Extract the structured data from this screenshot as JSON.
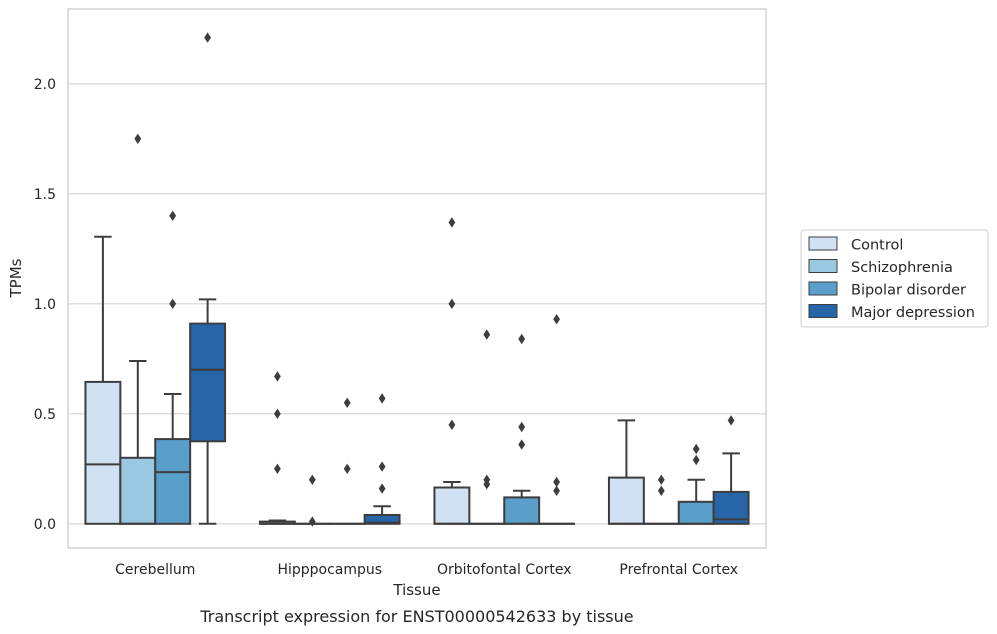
{
  "chart_data": {
    "type": "box",
    "caption": "Transcript expression for ENST00000542633 by tissue",
    "xlabel": "Tissue",
    "ylabel": "TPMs",
    "ylim": [
      -0.11,
      2.34
    ],
    "yticks": [
      0.0,
      0.5,
      1.0,
      1.5,
      2.0
    ],
    "ytick_labels": [
      "0.0",
      "0.5",
      "1.0",
      "1.5",
      "2.0"
    ],
    "grid": "horizontal",
    "legend_position": "right",
    "categories": [
      "Cerebellum",
      "Hipppocampus",
      "Orbitofontal Cortex",
      "Prefrontal Cortex"
    ],
    "series": [
      {
        "name": "Control",
        "color": "#cfe1f2",
        "boxes": [
          {
            "whislo": 0.0,
            "q1": 0.0,
            "med": 0.27,
            "q3": 0.645,
            "whishi": 1.305,
            "fliers": []
          },
          {
            "whislo": 0.0,
            "q1": 0.0,
            "med": 0.0,
            "q3": 0.01,
            "whishi": 0.015,
            "fliers": [
              0.25,
              0.5,
              0.67
            ]
          },
          {
            "whislo": 0.0,
            "q1": 0.0,
            "med": 0.0,
            "q3": 0.165,
            "whishi": 0.19,
            "fliers": [
              0.45,
              1.0,
              1.37
            ]
          },
          {
            "whislo": 0.0,
            "q1": 0.0,
            "med": 0.0,
            "q3": 0.21,
            "whishi": 0.47,
            "fliers": []
          }
        ]
      },
      {
        "name": "Schizophrenia",
        "color": "#9ac8e0",
        "boxes": [
          {
            "whislo": 0.0,
            "q1": 0.0,
            "med": 0.0,
            "q3": 0.3,
            "whishi": 0.74,
            "fliers": [
              1.75
            ]
          },
          {
            "whislo": 0.0,
            "q1": 0.0,
            "med": 0.0,
            "q3": 0.0,
            "whishi": 0.0,
            "fliers": [
              0.01,
              0.2
            ]
          },
          {
            "whislo": 0.0,
            "q1": 0.0,
            "med": 0.0,
            "q3": 0.0,
            "whishi": 0.0,
            "fliers": [
              0.18,
              0.2,
              0.86
            ]
          },
          {
            "whislo": 0.0,
            "q1": 0.0,
            "med": 0.0,
            "q3": 0.0,
            "whishi": 0.0,
            "fliers": [
              0.15,
              0.2
            ]
          }
        ]
      },
      {
        "name": "Bipolar disorder",
        "color": "#5a9fca",
        "boxes": [
          {
            "whislo": 0.0,
            "q1": 0.0,
            "med": 0.235,
            "q3": 0.385,
            "whishi": 0.59,
            "fliers": [
              1.0,
              1.4
            ]
          },
          {
            "whislo": 0.0,
            "q1": 0.0,
            "med": 0.0,
            "q3": 0.0,
            "whishi": 0.0,
            "fliers": [
              0.25,
              0.55
            ]
          },
          {
            "whislo": 0.0,
            "q1": 0.0,
            "med": 0.0,
            "q3": 0.12,
            "whishi": 0.15,
            "fliers": [
              0.36,
              0.44,
              0.84
            ]
          },
          {
            "whislo": 0.0,
            "q1": 0.0,
            "med": 0.0,
            "q3": 0.1,
            "whishi": 0.2,
            "fliers": [
              0.29,
              0.34
            ]
          }
        ]
      },
      {
        "name": "Major depression",
        "color": "#2565a8",
        "boxes": [
          {
            "whislo": 0.0,
            "q1": 0.375,
            "med": 0.7,
            "q3": 0.91,
            "whishi": 1.02,
            "fliers": [
              2.21
            ]
          },
          {
            "whislo": 0.0,
            "q1": 0.0,
            "med": 0.005,
            "q3": 0.04,
            "whishi": 0.08,
            "fliers": [
              0.16,
              0.26,
              0.57
            ]
          },
          {
            "whislo": 0.0,
            "q1": 0.0,
            "med": 0.0,
            "q3": 0.0,
            "whishi": 0.0,
            "fliers": [
              0.15,
              0.19,
              0.93
            ]
          },
          {
            "whislo": 0.0,
            "q1": 0.0,
            "med": 0.02,
            "q3": 0.145,
            "whishi": 0.32,
            "fliers": [
              0.47
            ]
          }
        ]
      }
    ]
  }
}
